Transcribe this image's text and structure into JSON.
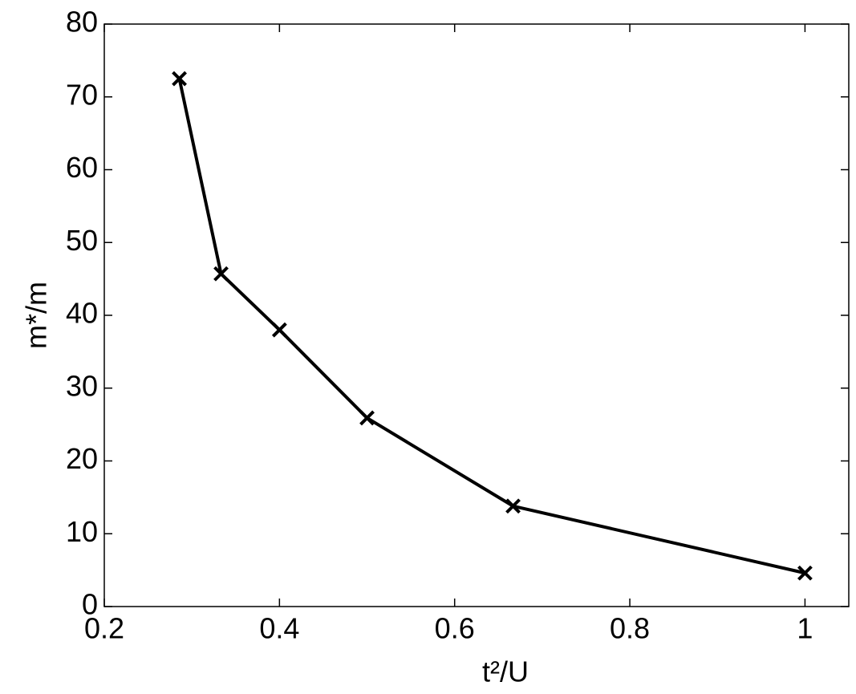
{
  "chart_data": {
    "type": "line",
    "xlabel": "t²/U",
    "ylabel": "m*/m",
    "x": [
      0.2857,
      0.3333,
      0.4,
      0.5,
      0.6667,
      1
    ],
    "series": [
      {
        "name": "m*/m",
        "color": "#000000",
        "values": [
          72.5,
          45.7,
          38.0,
          25.9,
          13.8,
          4.6
        ]
      }
    ],
    "xlim": [
      0.2,
      1.05
    ],
    "ylim": [
      0,
      80
    ],
    "xticks": [
      0.2,
      0.4,
      0.6,
      0.8,
      1
    ],
    "yticks": [
      0,
      10,
      20,
      30,
      40,
      50,
      60,
      70,
      80
    ],
    "grid": false
  }
}
